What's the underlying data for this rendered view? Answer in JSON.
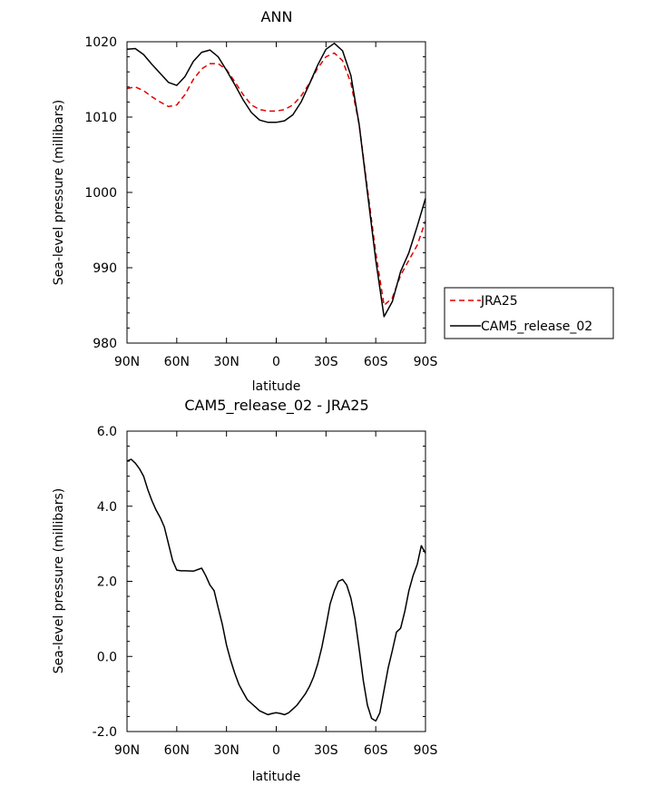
{
  "chart_data": [
    {
      "type": "line",
      "title": "ANN",
      "xlabel": "latitude",
      "ylabel": "Sea-level pressure (millibars)",
      "xlim": [
        90,
        -90
      ],
      "ylim": [
        980,
        1020
      ],
      "x_ticks": [
        90,
        60,
        30,
        0,
        -30,
        -60,
        -90
      ],
      "x_tick_labels": [
        "90N",
        "60N",
        "30N",
        "0",
        "30S",
        "60S",
        "90S"
      ],
      "y_ticks": [
        980,
        990,
        1000,
        1010,
        1020
      ],
      "y_tick_labels": [
        "980",
        "990",
        "1000",
        "1010",
        "1020"
      ],
      "legend_position": "right",
      "series": [
        {
          "name": "JRA25",
          "color": "#e00000",
          "dash": "dashed",
          "x": [
            90,
            85,
            80,
            75,
            70,
            65,
            60,
            55,
            50,
            45,
            40,
            35,
            30,
            25,
            20,
            15,
            10,
            5,
            0,
            -5,
            -10,
            -15,
            -20,
            -25,
            -30,
            -35,
            -40,
            -45,
            -50,
            -55,
            -60,
            -65,
            -70,
            -75,
            -80,
            -85,
            -90
          ],
          "y": [
            1013.8,
            1014.0,
            1013.5,
            1012.7,
            1012.0,
            1011.4,
            1011.6,
            1013.0,
            1015.0,
            1016.4,
            1017.1,
            1017.1,
            1016.3,
            1014.7,
            1013.0,
            1011.6,
            1011.0,
            1010.8,
            1010.8,
            1011.0,
            1011.6,
            1012.8,
            1014.5,
            1016.5,
            1018.0,
            1018.5,
            1017.5,
            1014.5,
            1009.0,
            1000.5,
            992.0,
            985.0,
            986.0,
            989.0,
            991.0,
            993.0,
            996.2
          ]
        },
        {
          "name": "CAM5_release_02",
          "color": "#000000",
          "dash": "solid",
          "x": [
            90,
            85,
            80,
            75,
            70,
            65,
            60,
            55,
            50,
            45,
            40,
            35,
            30,
            25,
            20,
            15,
            10,
            5,
            0,
            -5,
            -10,
            -15,
            -20,
            -25,
            -30,
            -35,
            -40,
            -45,
            -50,
            -55,
            -60,
            -65,
            -70,
            -75,
            -80,
            -85,
            -90
          ],
          "y": [
            1019.0,
            1019.1,
            1018.3,
            1017.0,
            1015.8,
            1014.6,
            1014.2,
            1015.4,
            1017.4,
            1018.6,
            1018.9,
            1018.0,
            1016.2,
            1014.3,
            1012.3,
            1010.6,
            1009.6,
            1009.3,
            1009.3,
            1009.5,
            1010.3,
            1012.0,
            1014.4,
            1016.9,
            1019.0,
            1019.8,
            1018.8,
            1015.5,
            1009.0,
            1000.0,
            991.0,
            983.5,
            985.5,
            989.5,
            992.0,
            995.5,
            999.2
          ]
        }
      ]
    },
    {
      "type": "line",
      "title": "CAM5_release_02 - JRA25",
      "xlabel": "latitude",
      "ylabel": "Sea-level pressure (millibars)",
      "xlim": [
        90,
        -90
      ],
      "ylim": [
        -2,
        6
      ],
      "x_ticks": [
        90,
        60,
        30,
        0,
        -30,
        -60,
        -90
      ],
      "x_tick_labels": [
        "90N",
        "60N",
        "30N",
        "0",
        "30S",
        "60S",
        "90S"
      ],
      "y_ticks": [
        -2,
        0,
        2,
        4,
        6
      ],
      "y_tick_labels": [
        "-2.0",
        "0.0",
        "2.0",
        "4.0",
        "6.0"
      ],
      "series": [
        {
          "color": "#000000",
          "dash": "solid",
          "x": [
            90,
            87.5,
            85,
            82.5,
            80,
            77.5,
            75,
            72.5,
            70,
            67.5,
            65,
            62.5,
            60,
            57.5,
            55,
            50,
            45,
            42.5,
            40,
            37.5,
            35,
            32.5,
            30,
            27.5,
            25,
            22.5,
            20,
            17.5,
            15,
            12.5,
            10,
            7.5,
            5,
            2.5,
            0,
            -2.5,
            -5,
            -7.5,
            -10,
            -12.5,
            -15,
            -17.5,
            -20,
            -22.5,
            -25,
            -27.5,
            -30,
            -32.5,
            -35,
            -37.5,
            -40,
            -42.5,
            -45,
            -47.5,
            -50,
            -52.5,
            -55,
            -57.5,
            -60,
            -62.5,
            -65,
            -67.5,
            -70,
            -72.5,
            -75,
            -77.5,
            -80,
            -82.5,
            -85,
            -87.5,
            -90
          ],
          "y": [
            5.2,
            5.25,
            5.15,
            5.0,
            4.8,
            4.45,
            4.15,
            3.9,
            3.7,
            3.45,
            3.0,
            2.55,
            2.3,
            2.28,
            2.28,
            2.27,
            2.35,
            2.15,
            1.9,
            1.75,
            1.3,
            0.85,
            0.3,
            -0.1,
            -0.45,
            -0.75,
            -0.95,
            -1.15,
            -1.25,
            -1.35,
            -1.45,
            -1.5,
            -1.55,
            -1.52,
            -1.5,
            -1.52,
            -1.55,
            -1.5,
            -1.4,
            -1.3,
            -1.15,
            -1.0,
            -0.8,
            -0.55,
            -0.2,
            0.25,
            0.8,
            1.4,
            1.75,
            2.0,
            2.05,
            1.9,
            1.55,
            1.0,
            0.2,
            -0.65,
            -1.3,
            -1.65,
            -1.72,
            -1.5,
            -0.9,
            -0.3,
            0.15,
            0.65,
            0.75,
            1.2,
            1.75,
            2.15,
            2.45,
            2.95,
            2.75
          ]
        }
      ]
    }
  ]
}
